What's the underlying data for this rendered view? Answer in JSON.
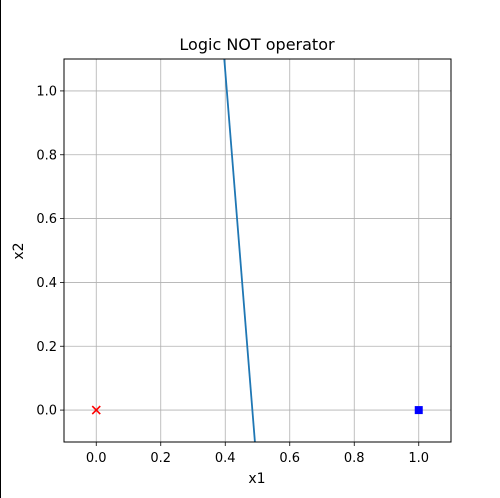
{
  "chart_data": {
    "type": "scatter",
    "title": "Logic NOT operator",
    "xlabel": "x1",
    "ylabel": "x2",
    "xlim": [
      -0.1,
      1.1
    ],
    "ylim": [
      -0.1,
      1.1
    ],
    "grid": true,
    "xticks": [
      0.0,
      0.2,
      0.4,
      0.6,
      0.8,
      1.0
    ],
    "yticks": [
      0.0,
      0.2,
      0.4,
      0.6,
      0.8,
      1.0
    ],
    "xtick_labels": [
      "0.0",
      "0.2",
      "0.4",
      "0.6",
      "0.8",
      "1.0"
    ],
    "ytick_labels": [
      "0.0",
      "0.2",
      "0.4",
      "0.6",
      "0.8",
      "1.0"
    ],
    "points": [
      {
        "x": 0.0,
        "y": 0.0,
        "marker": "x",
        "color": "#ff0000"
      },
      {
        "x": 1.0,
        "y": 0.0,
        "marker": "square",
        "color": "#0000ff"
      }
    ],
    "line": {
      "x": [
        0.397,
        0.492
      ],
      "y": [
        1.1,
        -0.1
      ],
      "color": "#1f77b4"
    },
    "colors": {
      "grid": "#b0b0b0",
      "axes": "#000000"
    }
  }
}
